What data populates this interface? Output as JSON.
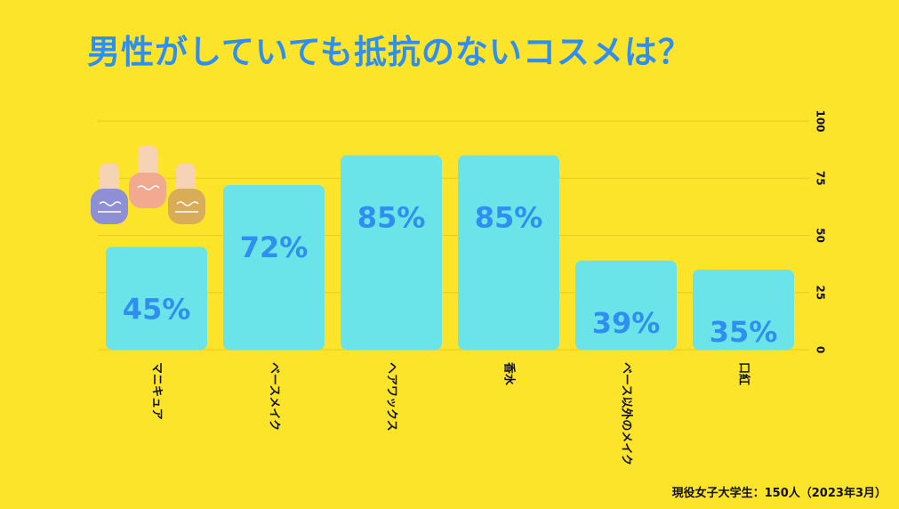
{
  "title": "男性がしていても抵抗のないコスメは？",
  "source": "現役女子大学生：150人（2023年3月）",
  "colors": {
    "background": "#fce42a",
    "bar": "#6ae3e9",
    "value_label": "#2e8ff0",
    "title": "#2e8ff0"
  },
  "decoration_icon": "nail-polish-bottles-icon",
  "chart_data": {
    "type": "bar",
    "categories": [
      "マニキュア",
      "ベースメイク",
      "ヘアワックス",
      "香水",
      "ベース以外のメイク",
      "口紅"
    ],
    "values": [
      45,
      72,
      85,
      85,
      39,
      35
    ],
    "value_labels": [
      "45%",
      "72%",
      "85%",
      "85%",
      "39%",
      "35%"
    ],
    "title": "男性がしていても抵抗のないコスメは？",
    "xlabel": "",
    "ylabel": "",
    "ylim": [
      0,
      100
    ],
    "yticks": [
      0,
      25,
      50,
      75,
      100
    ],
    "y_axis_side": "right",
    "grid": true,
    "legend": "none"
  }
}
